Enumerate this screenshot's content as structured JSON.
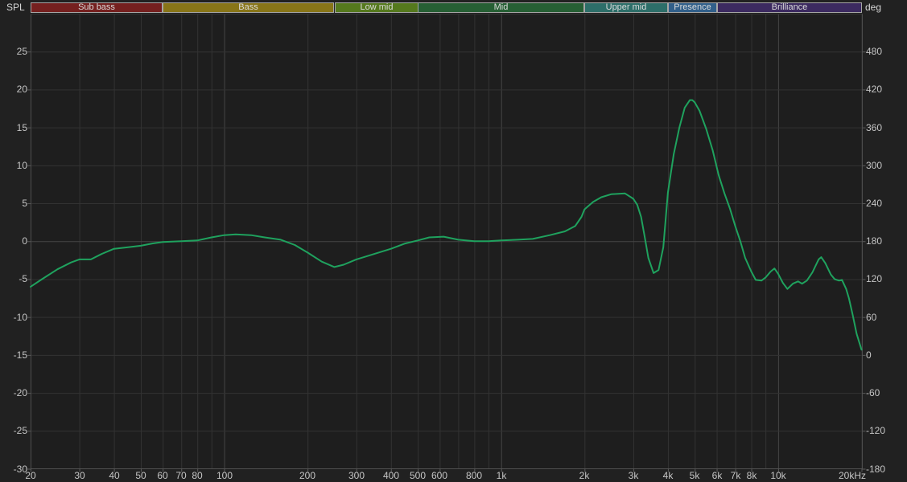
{
  "colors": {
    "background": "#212121",
    "plot_background": "#1e1e1e",
    "grid_minor": "#333333",
    "grid_major": "#454545",
    "axis_border": "#4d4d4d",
    "tick_mark": "#5a5a5a",
    "tick_text": "#c5c5c5",
    "trace": "#1fa25e",
    "band_border": "#a6a6a6",
    "band_text": "#dcdcdc"
  },
  "chart_data": {
    "type": "line",
    "title": "",
    "xscale": "log",
    "xlim": [
      20,
      20000
    ],
    "ylim_left": [
      -30,
      30
    ],
    "ylim_right": [
      -180,
      540
    ],
    "ylabel_left": "SPL",
    "ylabel_right": "deg",
    "grid": true,
    "legend": "none",
    "y_ticks_left": [
      25,
      20,
      15,
      10,
      5,
      0,
      -5,
      -10,
      -15,
      -20,
      -25,
      -30
    ],
    "y_ticks_right": [
      480,
      420,
      360,
      300,
      240,
      180,
      120,
      60,
      0,
      -60,
      -120,
      -180
    ],
    "x_gridlines": [
      20,
      30,
      40,
      50,
      60,
      70,
      80,
      90,
      100,
      200,
      300,
      400,
      500,
      600,
      700,
      800,
      900,
      1000,
      2000,
      3000,
      4000,
      5000,
      6000,
      7000,
      8000,
      9000,
      10000,
      20000
    ],
    "x_major_gridlines": [
      100,
      1000,
      10000
    ],
    "x_tick_labels": [
      {
        "f": 20,
        "label": "20"
      },
      {
        "f": 30,
        "label": "30"
      },
      {
        "f": 40,
        "label": "40"
      },
      {
        "f": 50,
        "label": "50"
      },
      {
        "f": 60,
        "label": "60"
      },
      {
        "f": 70,
        "label": "70"
      },
      {
        "f": 80,
        "label": "80"
      },
      {
        "f": 100,
        "label": "100"
      },
      {
        "f": 200,
        "label": "200"
      },
      {
        "f": 300,
        "label": "300"
      },
      {
        "f": 400,
        "label": "400"
      },
      {
        "f": 500,
        "label": "500"
      },
      {
        "f": 600,
        "label": "600"
      },
      {
        "f": 800,
        "label": "800"
      },
      {
        "f": 1000,
        "label": "1k"
      },
      {
        "f": 2000,
        "label": "2k"
      },
      {
        "f": 3000,
        "label": "3k"
      },
      {
        "f": 4000,
        "label": "4k"
      },
      {
        "f": 5000,
        "label": "5k"
      },
      {
        "f": 6000,
        "label": "6k"
      },
      {
        "f": 7000,
        "label": "7k"
      },
      {
        "f": 8000,
        "label": "8k"
      },
      {
        "f": 10000,
        "label": "10k"
      },
      {
        "f": 20000,
        "label": "20kHz"
      }
    ],
    "bands": [
      {
        "label": "Sub bass",
        "from": 20,
        "to": 60,
        "color": "#75201f"
      },
      {
        "label": "Bass",
        "from": 60,
        "to": 250,
        "color": "#887518"
      },
      {
        "label": "Low mid",
        "from": 250,
        "to": 500,
        "color": "#55791d"
      },
      {
        "label": "Mid",
        "from": 500,
        "to": 2000,
        "color": "#265f34"
      },
      {
        "label": "Upper mid",
        "from": 2000,
        "to": 4000,
        "color": "#2d6e69"
      },
      {
        "label": "Presence",
        "from": 4000,
        "to": 6000,
        "color": "#315f8a"
      },
      {
        "label": "Brilliance",
        "from": 6000,
        "to": 20000,
        "color": "#3c2a60"
      }
    ],
    "series": [
      {
        "name": "SPL trace",
        "color": "#1fa25e",
        "points": [
          [
            20,
            -6.0
          ],
          [
            22,
            -5.0
          ],
          [
            25,
            -3.7
          ],
          [
            28,
            -2.8
          ],
          [
            30,
            -2.4
          ],
          [
            33,
            -2.4
          ],
          [
            36,
            -1.7
          ],
          [
            40,
            -1.0
          ],
          [
            45,
            -0.8
          ],
          [
            50,
            -0.6
          ],
          [
            55,
            -0.3
          ],
          [
            60,
            -0.1
          ],
          [
            70,
            0.0
          ],
          [
            80,
            0.1
          ],
          [
            90,
            0.5
          ],
          [
            100,
            0.8
          ],
          [
            110,
            0.9
          ],
          [
            125,
            0.8
          ],
          [
            140,
            0.5
          ],
          [
            160,
            0.2
          ],
          [
            180,
            -0.5
          ],
          [
            200,
            -1.5
          ],
          [
            225,
            -2.7
          ],
          [
            250,
            -3.4
          ],
          [
            270,
            -3.1
          ],
          [
            300,
            -2.4
          ],
          [
            340,
            -1.8
          ],
          [
            400,
            -1.0
          ],
          [
            450,
            -0.3
          ],
          [
            500,
            0.1
          ],
          [
            550,
            0.5
          ],
          [
            620,
            0.6
          ],
          [
            700,
            0.2
          ],
          [
            800,
            0.0
          ],
          [
            900,
            0.0
          ],
          [
            1000,
            0.1
          ],
          [
            1150,
            0.2
          ],
          [
            1300,
            0.3
          ],
          [
            1500,
            0.8
          ],
          [
            1700,
            1.3
          ],
          [
            1850,
            2.0
          ],
          [
            1950,
            3.2
          ],
          [
            2000,
            4.2
          ],
          [
            2150,
            5.2
          ],
          [
            2300,
            5.8
          ],
          [
            2500,
            6.2
          ],
          [
            2800,
            6.3
          ],
          [
            3000,
            5.6
          ],
          [
            3100,
            4.8
          ],
          [
            3200,
            3.2
          ],
          [
            3300,
            0.5
          ],
          [
            3400,
            -2.2
          ],
          [
            3550,
            -4.2
          ],
          [
            3700,
            -3.8
          ],
          [
            3850,
            -0.8
          ],
          [
            4000,
            6.4
          ],
          [
            4200,
            11.5
          ],
          [
            4400,
            15.0
          ],
          [
            4600,
            17.6
          ],
          [
            4800,
            18.6
          ],
          [
            4900,
            18.6
          ],
          [
            5000,
            18.3
          ],
          [
            5200,
            17.2
          ],
          [
            5500,
            14.8
          ],
          [
            5800,
            12.0
          ],
          [
            6100,
            8.7
          ],
          [
            6400,
            6.3
          ],
          [
            6700,
            4.3
          ],
          [
            7000,
            2.0
          ],
          [
            7300,
            0.0
          ],
          [
            7600,
            -2.2
          ],
          [
            8000,
            -4.0
          ],
          [
            8300,
            -5.1
          ],
          [
            8700,
            -5.2
          ],
          [
            9000,
            -4.8
          ],
          [
            9400,
            -4.0
          ],
          [
            9700,
            -3.6
          ],
          [
            10000,
            -4.3
          ],
          [
            10400,
            -5.5
          ],
          [
            10800,
            -6.3
          ],
          [
            11300,
            -5.6
          ],
          [
            11800,
            -5.3
          ],
          [
            12200,
            -5.6
          ],
          [
            12700,
            -5.2
          ],
          [
            13300,
            -4.1
          ],
          [
            14000,
            -2.4
          ],
          [
            14300,
            -2.1
          ],
          [
            14800,
            -2.9
          ],
          [
            15500,
            -4.4
          ],
          [
            16000,
            -5.0
          ],
          [
            16600,
            -5.2
          ],
          [
            17000,
            -5.1
          ],
          [
            17600,
            -6.3
          ],
          [
            18000,
            -7.5
          ],
          [
            18600,
            -9.8
          ],
          [
            19200,
            -12.2
          ],
          [
            20000,
            -14.3
          ]
        ]
      }
    ]
  }
}
